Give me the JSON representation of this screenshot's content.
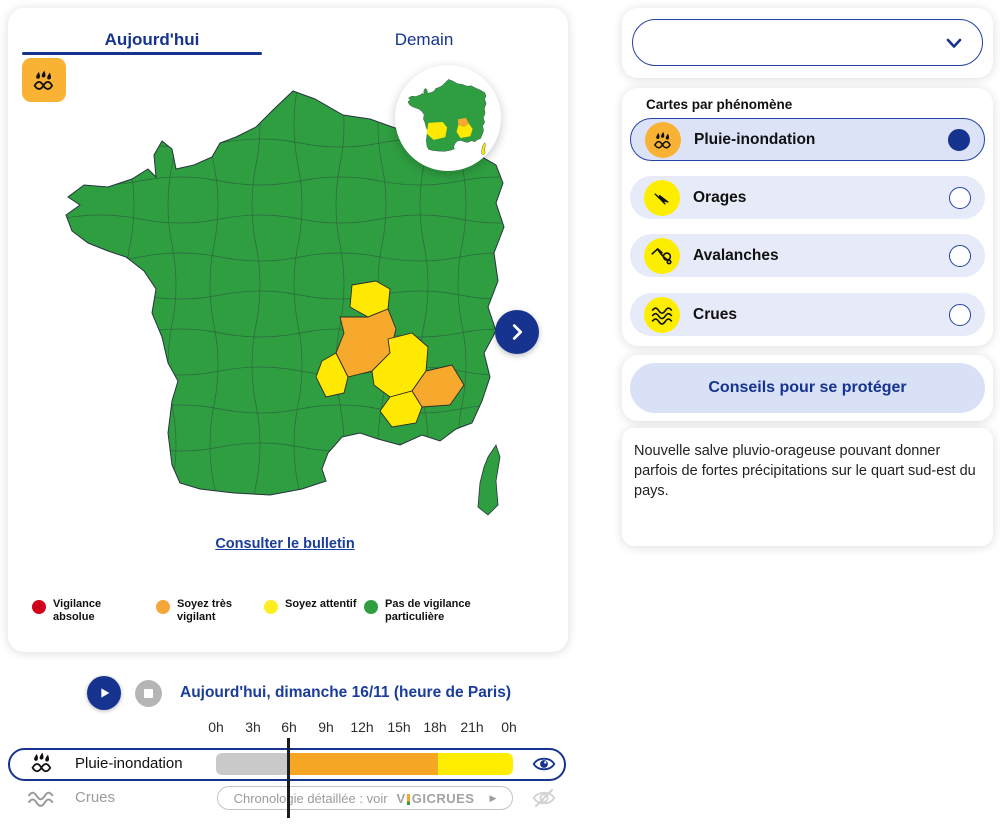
{
  "tabs": {
    "today": "Aujourd'hui",
    "tomorrow": "Demain"
  },
  "map": {
    "badge_icon": "rain-flood-icon",
    "bulletin_link": "Consulter le bulletin",
    "colors": {
      "green": "#2f9e41",
      "yellow": "#ffe903",
      "orange": "#f7a92d"
    },
    "legend": [
      {
        "label": "Vigilance absolue",
        "color": "#d0021b"
      },
      {
        "label": "Soyez très vigilant",
        "color": "#f5a63b"
      },
      {
        "label": "Soyez attentif",
        "color": "#fcee21"
      },
      {
        "label": "Pas de vigilance particulière",
        "color": "#2f9e41"
      }
    ]
  },
  "sidebar": {
    "select": {
      "value": "",
      "chevron_icon": "chevron-down-icon"
    },
    "section_title": "Cartes par phénomène",
    "items": [
      {
        "label": "Pluie-inondation",
        "selected": true,
        "icon": "rain-flood-icon",
        "icon_bg": "#f9b234"
      },
      {
        "label": "Orages",
        "selected": false,
        "icon": "storm-icon",
        "icon_bg": "#fdee00"
      },
      {
        "label": "Avalanches",
        "selected": false,
        "icon": "avalanche-icon",
        "icon_bg": "#fdee00"
      },
      {
        "label": "Crues",
        "selected": false,
        "icon": "flood-wave-icon",
        "icon_bg": "#fdee00"
      }
    ],
    "advice_button": "Conseils pour se protéger",
    "description": "Nouvelle salve pluvio-orageuse pouvant donner parfois de fortes précipitations sur le quart sud-est du pays."
  },
  "timeline": {
    "date_label": "Aujourd'hui, dimanche 16/11 (heure de Paris)",
    "hours": [
      "0h",
      "3h",
      "6h",
      "9h",
      "12h",
      "15h",
      "18h",
      "21h",
      "0h"
    ],
    "cursor_hour": "6h",
    "rows": [
      {
        "label": "Pluie-inondation",
        "visible": true,
        "segments": [
          {
            "color": "#c9c9c9",
            "width_pct": 24.9,
            "from": "0h",
            "to": "6h"
          },
          {
            "color": "#f5a623",
            "width_pct": 49.8,
            "from": "6h",
            "to": "18h"
          },
          {
            "color": "#ffee00",
            "width_pct": 25.3,
            "from": "18h",
            "to": "24h"
          }
        ]
      },
      {
        "label": "Crues",
        "visible": false,
        "button_text": "Chronologie détaillée : voir",
        "button_brand_prefix": "V",
        "button_brand_suffix": "GICRUES",
        "button_arrow": "▶"
      }
    ]
  }
}
